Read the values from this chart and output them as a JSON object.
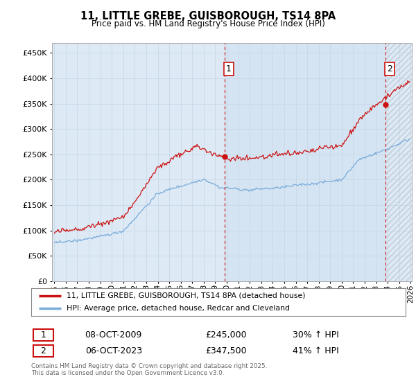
{
  "title": "11, LITTLE GREBE, GUISBOROUGH, TS14 8PA",
  "subtitle": "Price paid vs. HM Land Registry's House Price Index (HPI)",
  "legend_line1": "11, LITTLE GREBE, GUISBOROUGH, TS14 8PA (detached house)",
  "legend_line2": "HPI: Average price, detached house, Redcar and Cleveland",
  "sale1_date": "08-OCT-2009",
  "sale1_price": 245000,
  "sale1_year": 2009.79,
  "sale2_date": "06-OCT-2023",
  "sale2_price": 347500,
  "sale2_year": 2023.79,
  "footer": "Contains HM Land Registry data © Crown copyright and database right 2025.\nThis data is licensed under the Open Government Licence v3.0.",
  "hpi_color": "#7aabdb",
  "price_color": "#cc1111",
  "vline_color": "#cc1111",
  "grid_color": "#c8d8e8",
  "bg_color": "#ddeaf5",
  "bg_color_highlight": "#cce0f0",
  "ylim": [
    0,
    470000
  ],
  "yticks": [
    0,
    50000,
    100000,
    150000,
    200000,
    250000,
    300000,
    350000,
    400000,
    450000
  ],
  "xstart": 1995,
  "xend": 2026
}
